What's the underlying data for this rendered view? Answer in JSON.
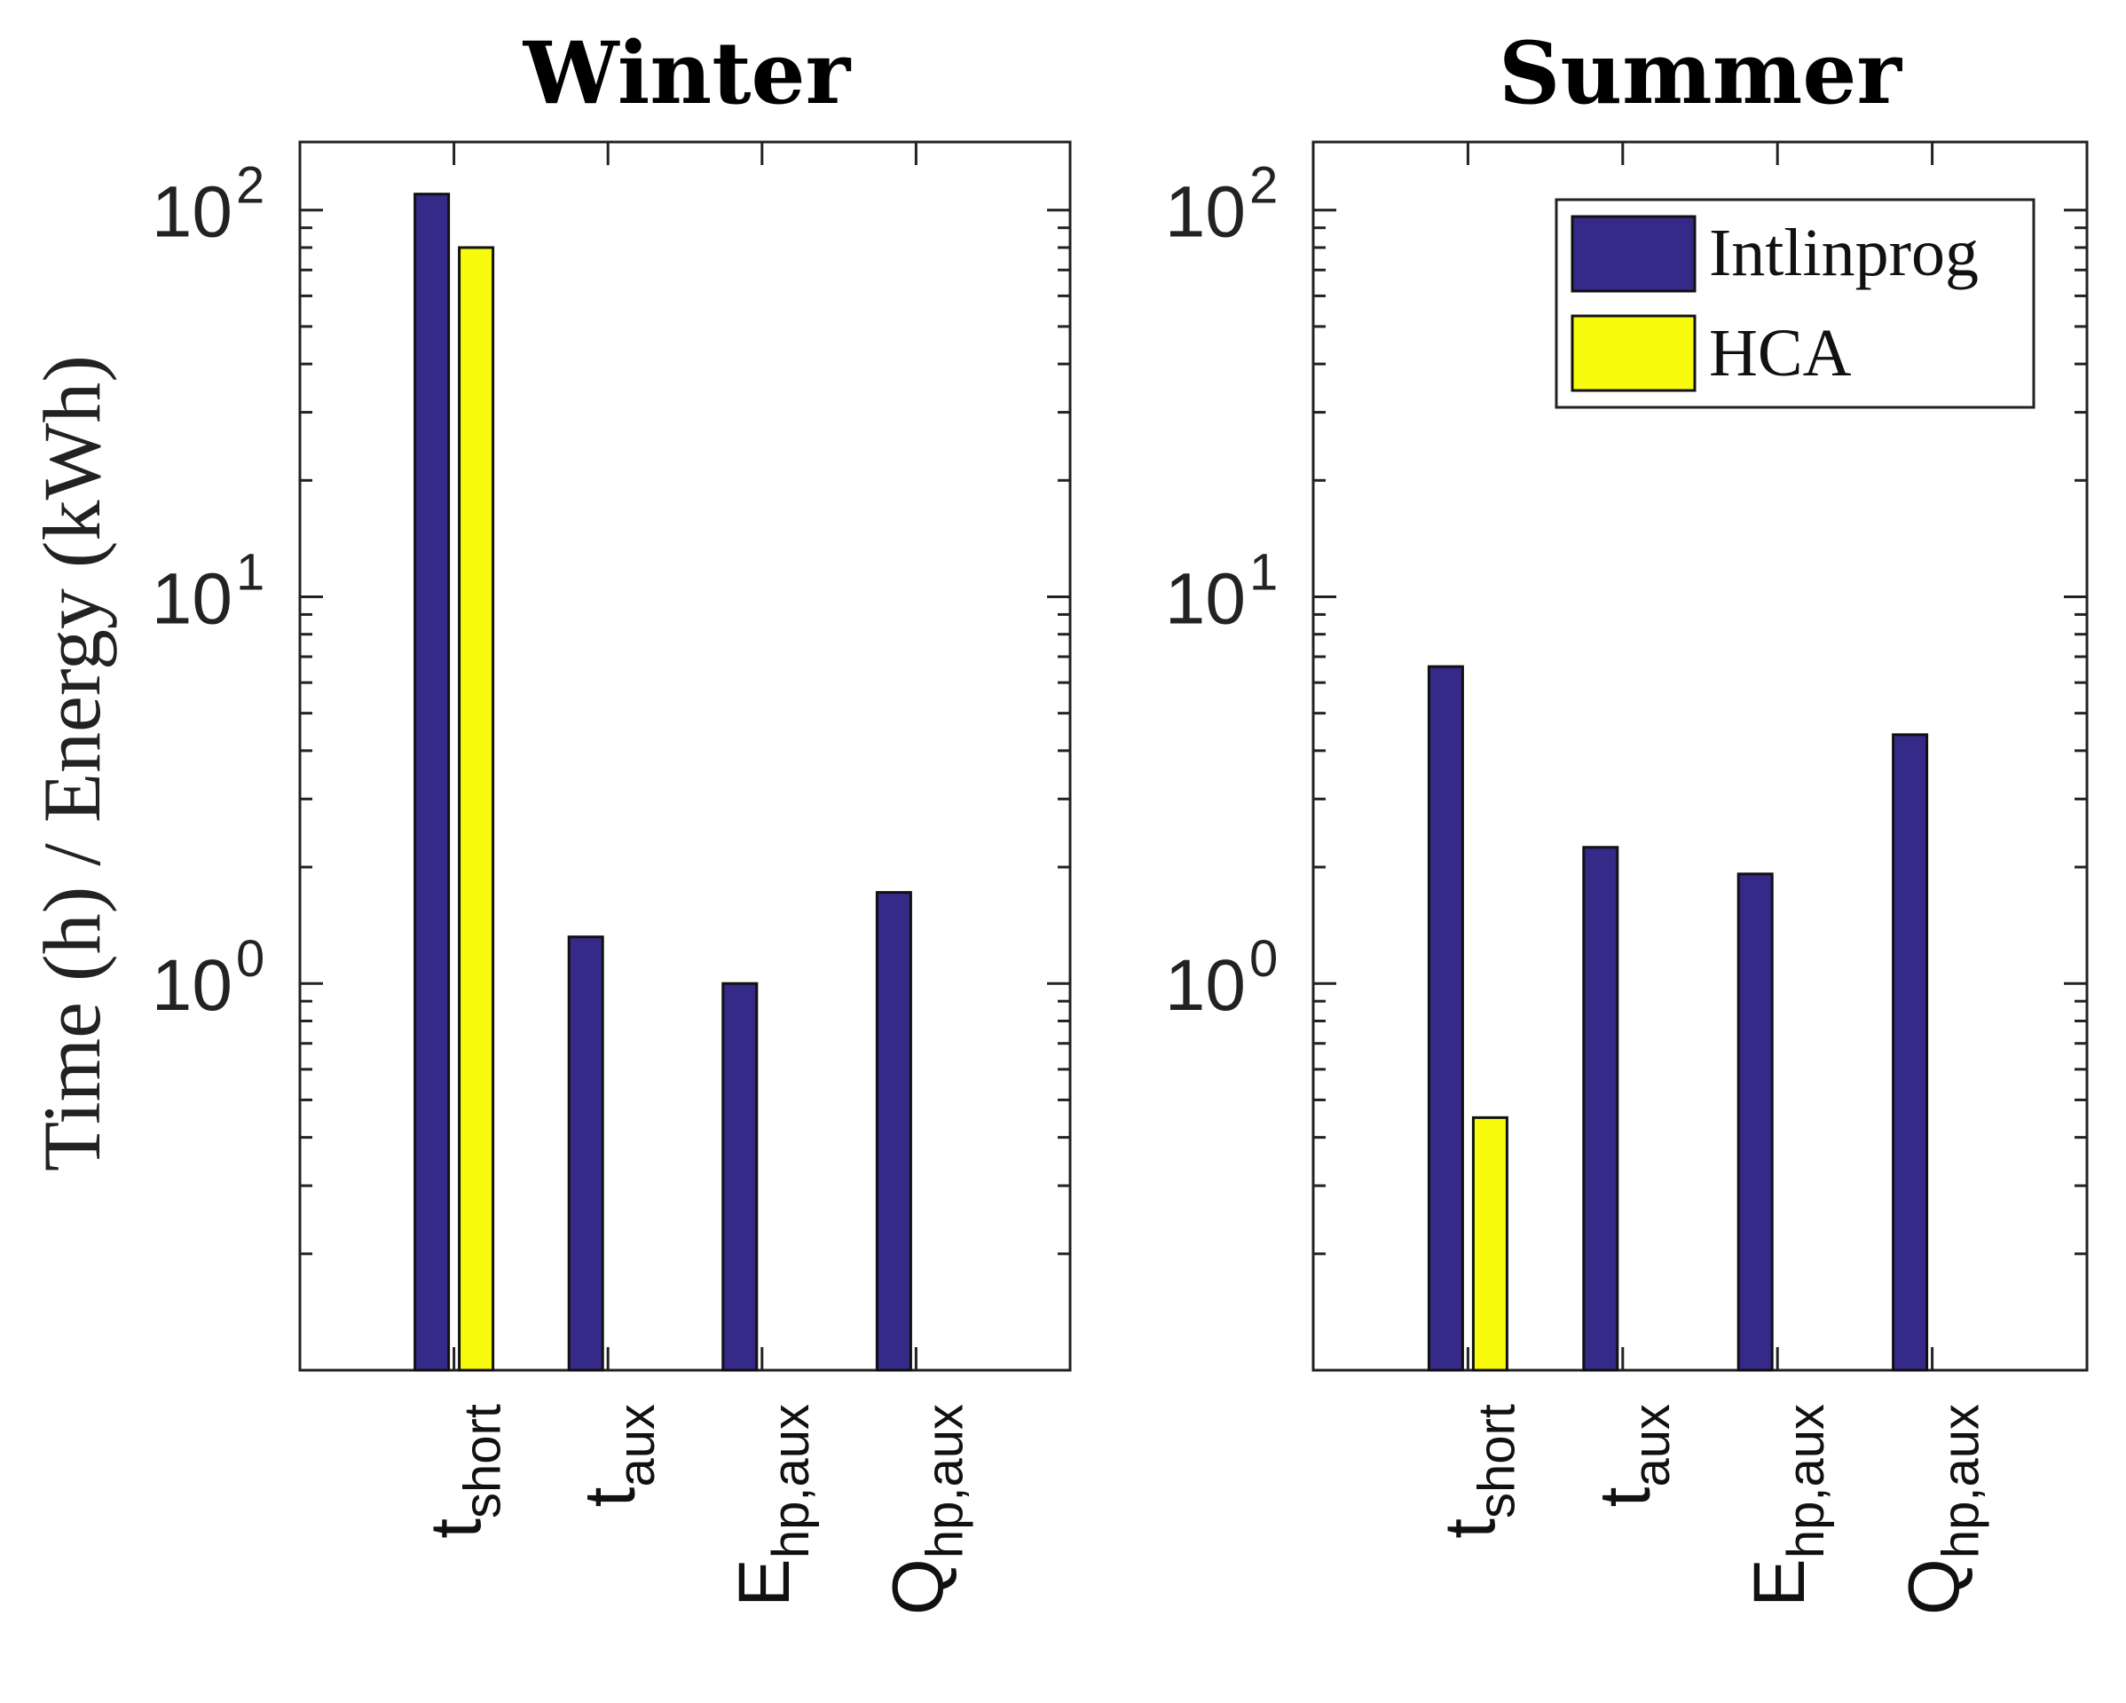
{
  "chart_data": {
    "type": "bar",
    "ylabel": "Time  (h) / Energy (kWh)",
    "yscale": "log",
    "ylim": [
      0.1,
      150
    ],
    "yticks": [
      1,
      10,
      100
    ],
    "yticklabels": [
      {
        "base": "10",
        "exp": "0"
      },
      {
        "base": "10",
        "exp": "1"
      },
      {
        "base": "10",
        "exp": "2"
      }
    ],
    "categories": [
      {
        "main": "t",
        "sub": "short"
      },
      {
        "main": "t",
        "sub": "aux"
      },
      {
        "main": "E",
        "sub": "hp,aux"
      },
      {
        "main": "Q",
        "sub": "hp,aux"
      }
    ],
    "legend": {
      "position": "top-right",
      "entries": [
        "Intlinprog",
        "HCA"
      ]
    },
    "series_colors": [
      "#352a87",
      "#f9fb0e"
    ],
    "panels": [
      {
        "title": "Winter",
        "series": [
          {
            "name": "Intlinprog",
            "values": [
              110,
              1.32,
              1.0,
              1.72
            ]
          },
          {
            "name": "HCA",
            "values": [
              80,
              null,
              null,
              null
            ]
          }
        ]
      },
      {
        "title": "Summer",
        "series": [
          {
            "name": "Intlinprog",
            "values": [
              6.6,
              2.25,
              1.92,
              4.4
            ]
          },
          {
            "name": "HCA",
            "values": [
              0.45,
              null,
              null,
              null
            ]
          }
        ]
      }
    ]
  }
}
